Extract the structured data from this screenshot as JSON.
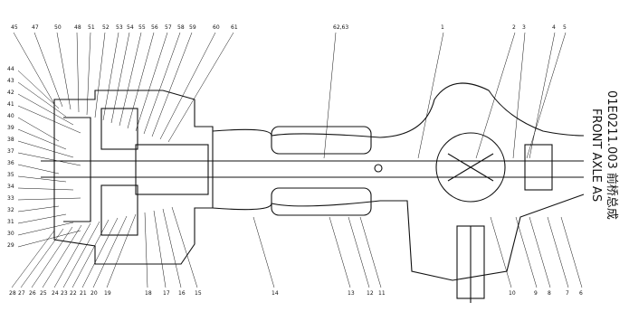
{
  "drawing": {
    "title": "01E0211.003 前桥总成",
    "subtitle": "FRONT AXLE AS",
    "callouts_top": [
      "45",
      "47",
      "50",
      "48",
      "51",
      "52",
      "53",
      "54",
      "55",
      "56",
      "57",
      "58",
      "59",
      "60",
      "61",
      "62,63",
      "1",
      "2",
      "3",
      "4",
      "5"
    ],
    "callouts_left": [
      "44",
      "43",
      "42",
      "41",
      "40",
      "39",
      "38",
      "37",
      "36",
      "35",
      "34",
      "33",
      "32",
      "31",
      "30",
      "29"
    ],
    "callouts_bottom": [
      "28",
      "27",
      "26",
      "25",
      "24",
      "23",
      "22",
      "21",
      "20",
      "19",
      "18",
      "17",
      "16",
      "15",
      "14",
      "13",
      "12",
      "11",
      "10",
      "9",
      "8",
      "7",
      "6"
    ]
  }
}
